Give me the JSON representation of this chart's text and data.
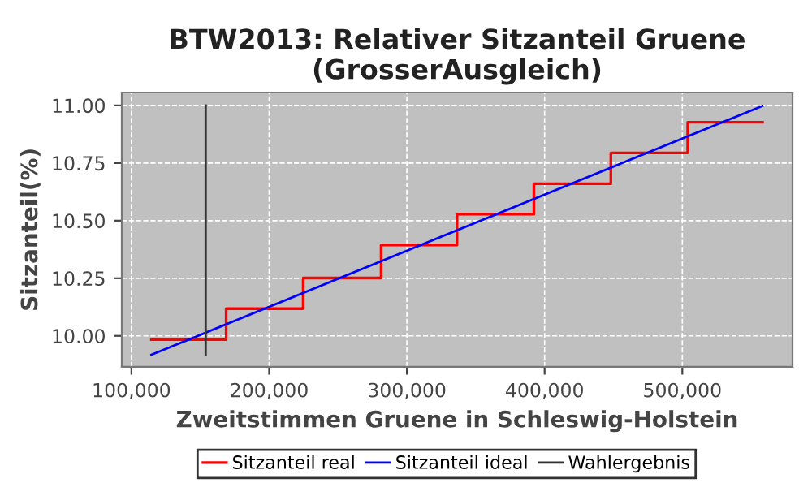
{
  "chart_data": {
    "type": "line",
    "title": "BTW2013: Relativer Sitzanteil Gruene\n(GrosserAusgleich)",
    "xlabel": "Zweitstimmen Gruene in Schleswig-Holstein",
    "ylabel": "Sitzanteil(%)",
    "series": [
      {
        "name": "Sitzanteil real",
        "type": "step",
        "color": "#ff0000",
        "x": [
          114500,
          168800,
          224700,
          281300,
          336400,
          392200,
          448100,
          503900,
          558200
        ],
        "values": [
          9.984,
          10.118,
          10.251,
          10.394,
          10.528,
          10.66,
          10.794,
          10.927,
          10.927
        ]
      },
      {
        "name": "Sitzanteil ideal",
        "color": "#0000ff",
        "x": [
          114500,
          558200
        ],
        "values": [
          9.918,
          10.998
        ]
      },
      {
        "name": "Wahlergebnis",
        "color": "#333333",
        "x": [
          153900,
          153900
        ],
        "values": [
          9.918,
          11.0
        ]
      }
    ],
    "xlim": [
      93000,
      580000
    ],
    "ylim": [
      9.866,
      11.056
    ],
    "xticks": [
      {
        "value": 100000,
        "label": "100,000"
      },
      {
        "value": 200000,
        "label": "200,000"
      },
      {
        "value": 300000,
        "label": "300,000"
      },
      {
        "value": 400000,
        "label": "400,000"
      },
      {
        "value": 500000,
        "label": "500,000"
      }
    ],
    "yticks": [
      {
        "value": 10,
        "label": "10.00"
      },
      {
        "value": 10.25,
        "label": "10.25"
      },
      {
        "value": 10.5,
        "label": "10.50"
      },
      {
        "value": 10.75,
        "label": "10.75"
      },
      {
        "value": 11,
        "label": "11.00"
      }
    ],
    "grid": true,
    "legend": "bottom"
  }
}
